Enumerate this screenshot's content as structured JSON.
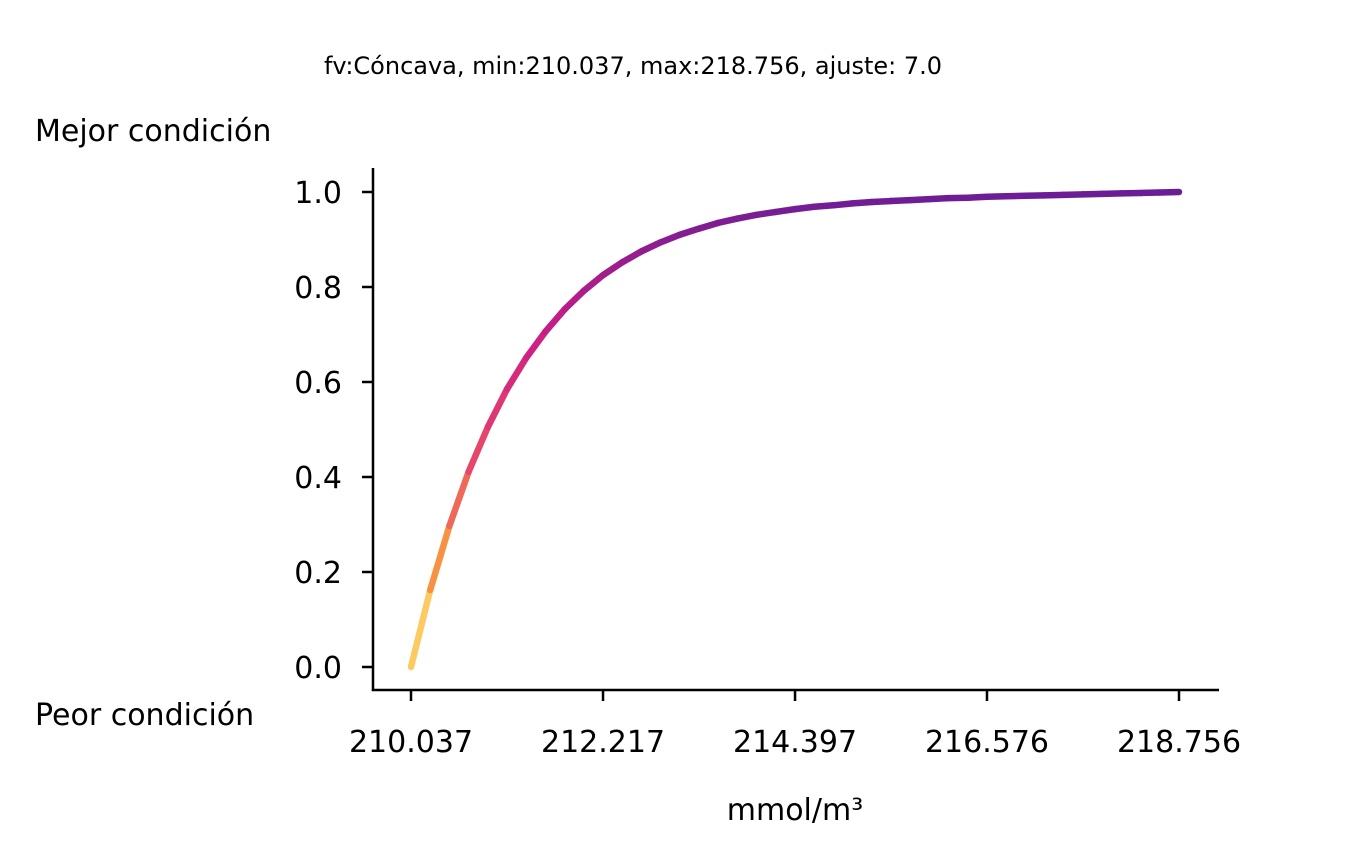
{
  "chart_data": {
    "type": "line",
    "title": "fv:Cóncava, min:210.037, max:218.756, ajuste: 7.0",
    "xlabel": "mmol/m³",
    "ylabel_top": "Mejor condición",
    "ylabel_bottom": "Peor condición",
    "xlim": [
      210.037,
      218.756
    ],
    "ylim": [
      0.0,
      1.0
    ],
    "x_ticks": [
      210.037,
      212.217,
      214.397,
      216.576,
      218.756
    ],
    "x_tick_labels": [
      "210.037",
      "212.217",
      "214.397",
      "216.576",
      "218.756"
    ],
    "y_ticks": [
      0.0,
      0.2,
      0.4,
      0.6,
      0.8,
      1.0
    ],
    "y_tick_labels": [
      "0.0",
      "0.2",
      "0.4",
      "0.6",
      "0.8",
      "1.0"
    ],
    "grid": false,
    "colormap": "plasma (reversed): yellow at 0 to purple at 1",
    "colors": {
      "low": "#fdea76",
      "mid_low": "#f89540",
      "mid": "#e8476a",
      "mid_high": "#cc1d86",
      "high": "#6a1d96"
    },
    "series": [
      {
        "x": [
          210.037,
          210.255,
          210.473,
          210.691,
          210.909,
          211.127,
          211.345,
          211.563,
          211.781,
          211.999,
          212.217,
          212.435,
          212.653,
          212.871,
          213.089,
          213.307,
          213.525,
          213.743,
          213.961,
          214.179,
          214.397,
          214.615,
          214.833,
          215.051,
          215.269,
          215.487,
          215.705,
          215.922,
          216.14,
          216.358,
          216.576,
          216.794,
          217.012,
          217.23,
          217.448,
          217.666,
          217.884,
          218.102,
          218.32,
          218.538,
          218.756
        ],
        "y": [
          0.0,
          0.162,
          0.297,
          0.411,
          0.505,
          0.585,
          0.651,
          0.706,
          0.753,
          0.792,
          0.825,
          0.852,
          0.875,
          0.894,
          0.91,
          0.923,
          0.935,
          0.944,
          0.952,
          0.958,
          0.964,
          0.969,
          0.972,
          0.976,
          0.979,
          0.981,
          0.983,
          0.985,
          0.987,
          0.988,
          0.99,
          0.991,
          0.992,
          0.993,
          0.994,
          0.995,
          0.996,
          0.997,
          0.998,
          0.999,
          1.0
        ]
      }
    ]
  }
}
